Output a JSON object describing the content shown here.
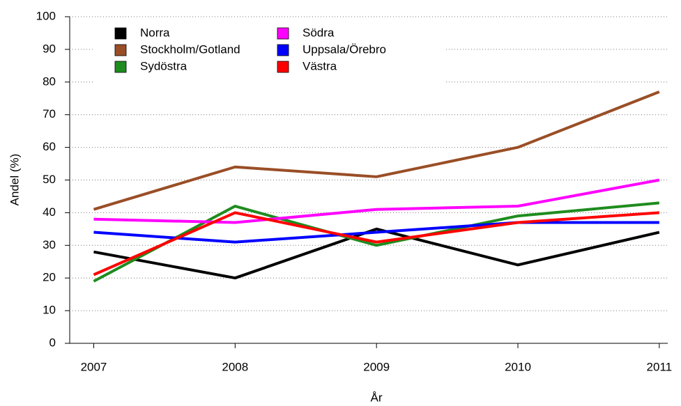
{
  "chart_data": {
    "type": "line",
    "x_label": "År",
    "y_label": "Andel (%)",
    "x": [
      2007,
      2008,
      2009,
      2010,
      2011
    ],
    "xlim": [
      2006.83,
      2011.06
    ],
    "xticks": [
      2007,
      2008,
      2009,
      2010,
      2011
    ],
    "ylim": [
      0,
      100
    ],
    "yticks": [
      0,
      10,
      20,
      30,
      40,
      50,
      60,
      70,
      80,
      90,
      100
    ],
    "grid": true,
    "legend": "top-left",
    "series": [
      {
        "name": "Norra",
        "color": "#000000",
        "values": [
          28,
          20,
          35,
          24,
          34
        ]
      },
      {
        "name": "Stockholm/Gotland",
        "color": "#9a4e26",
        "values": [
          41,
          54,
          51,
          60,
          77
        ]
      },
      {
        "name": "Sydöstra",
        "color": "#1e8c1e",
        "values": [
          19,
          42,
          30,
          39,
          43
        ]
      },
      {
        "name": "Södra",
        "color": "#ff00ff",
        "values": [
          38,
          37,
          41,
          42,
          50
        ]
      },
      {
        "name": "Uppsala/Örebro",
        "color": "#0000ff",
        "values": [
          34,
          31,
          34,
          37,
          37
        ]
      },
      {
        "name": "Västra",
        "color": "#ff0000",
        "values": [
          21,
          40,
          31,
          37,
          40
        ]
      }
    ]
  }
}
